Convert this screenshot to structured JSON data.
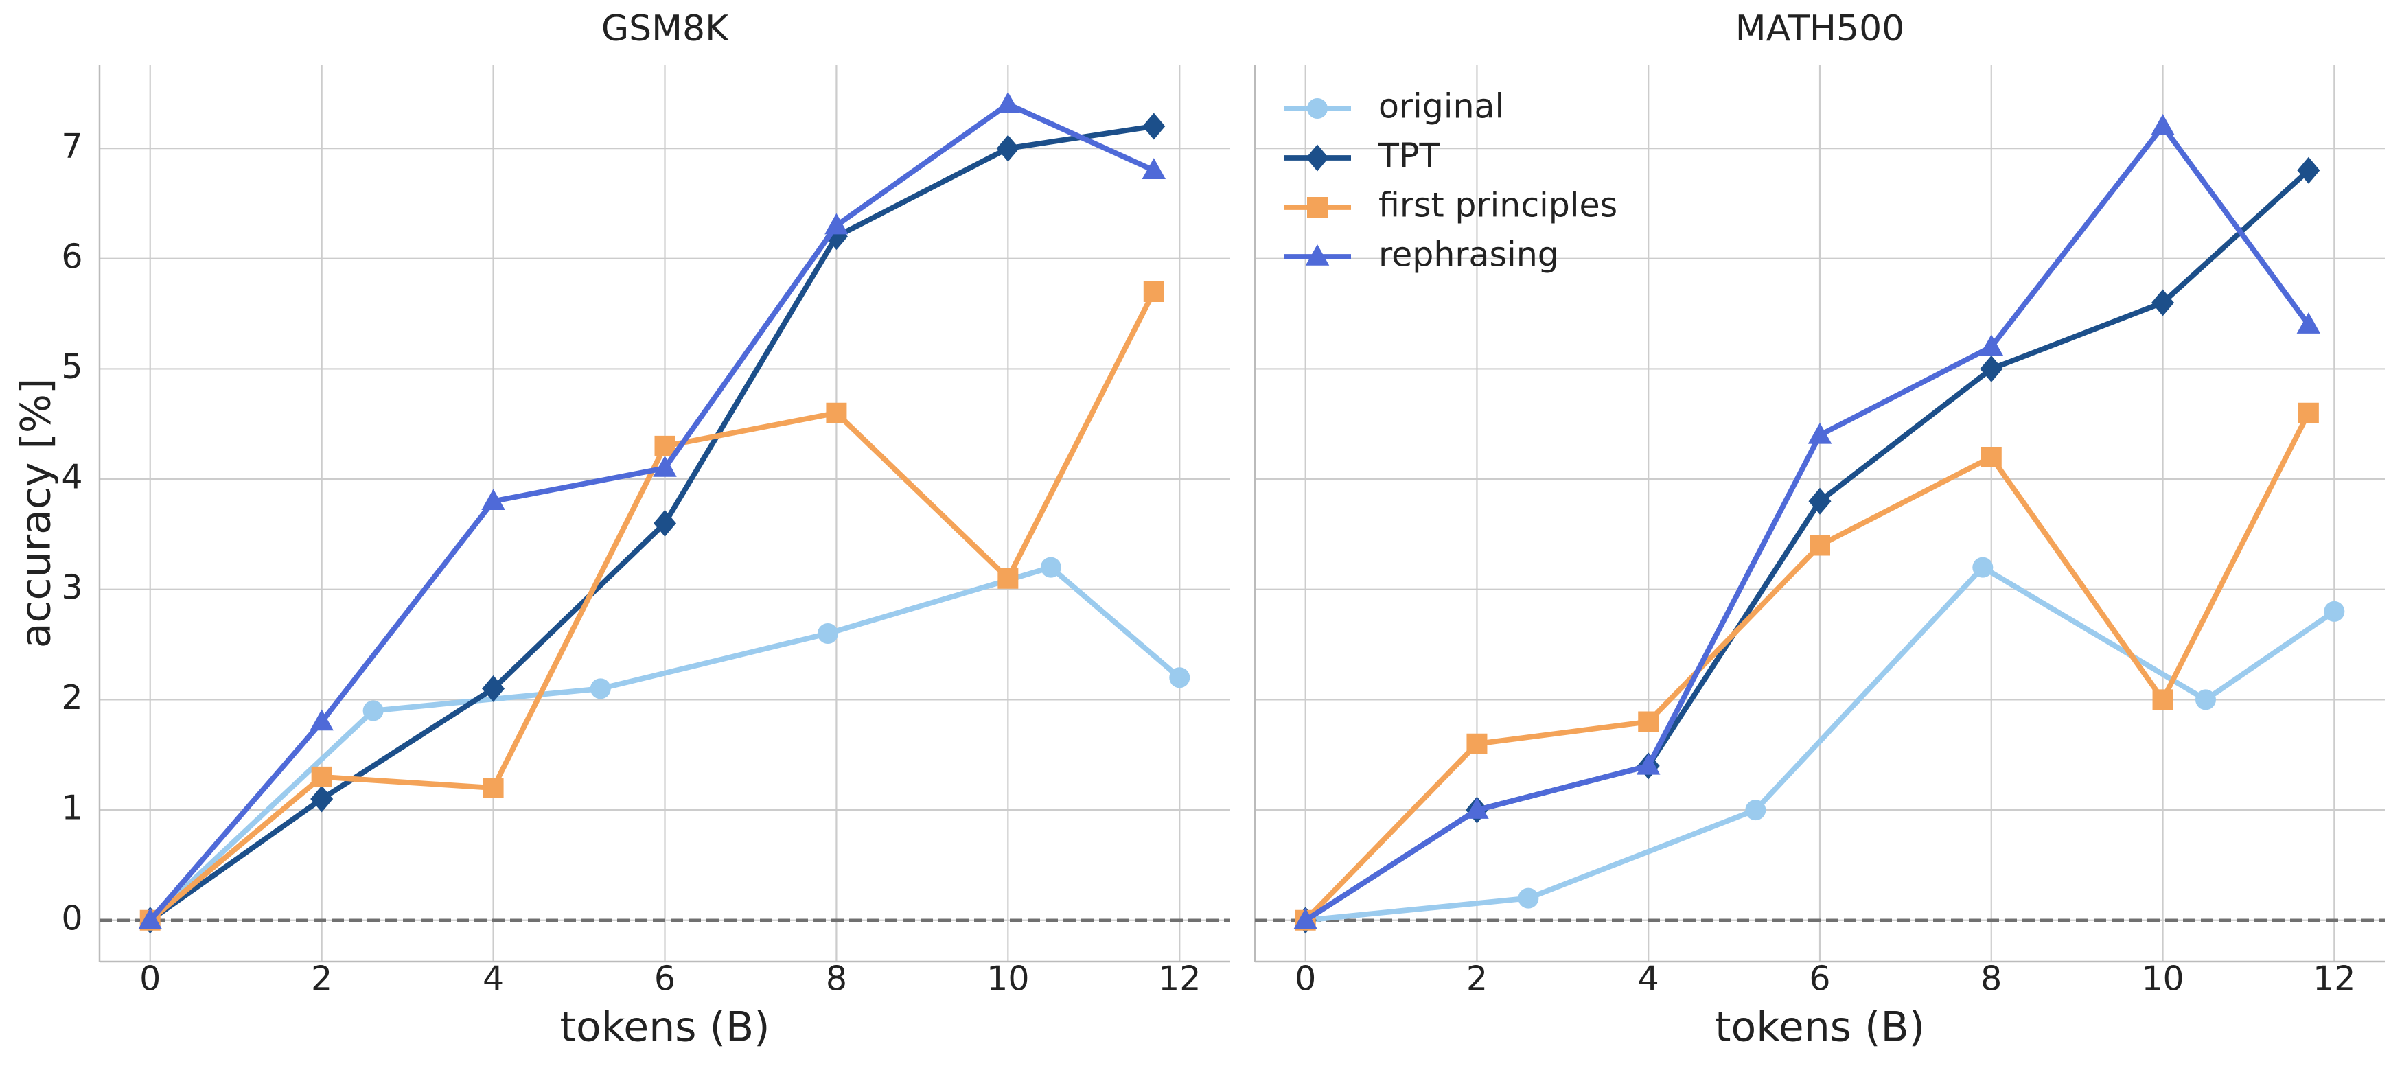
{
  "chart_data": [
    {
      "type": "line",
      "title": "GSM8K",
      "xlabel": "tokens (B)",
      "ylabel": "accuracy [%]",
      "xlim": [
        -0.59,
        12.59
      ],
      "xticks": [
        0,
        2,
        4,
        6,
        8,
        10,
        12
      ],
      "ylim": [
        -0.375,
        7.76
      ],
      "yticks": [
        0,
        1,
        2,
        3,
        4,
        5,
        6,
        7
      ],
      "grid": true,
      "hline": 0,
      "series": [
        {
          "name": "original",
          "color": "#9bcbee",
          "marker": "circle",
          "x": [
            0,
            2.6,
            5.25,
            7.9,
            10.5,
            12.0
          ],
          "values": [
            0,
            1.9,
            2.1,
            2.6,
            3.2,
            2.2
          ]
        },
        {
          "name": "TPT",
          "color": "#1c4f8a",
          "marker": "diamond",
          "x": [
            0,
            2,
            4,
            6,
            8,
            10,
            11.7
          ],
          "values": [
            0,
            1.1,
            2.1,
            3.6,
            6.2,
            7.0,
            7.2
          ]
        },
        {
          "name": "first principles",
          "color": "#f4a358",
          "marker": "square",
          "x": [
            0,
            2,
            4,
            6,
            8,
            10,
            11.7
          ],
          "values": [
            0,
            1.3,
            1.2,
            4.3,
            4.6,
            3.1,
            5.7
          ]
        },
        {
          "name": "rephrasing",
          "color": "#4f6ad8",
          "marker": "triangle",
          "x": [
            0,
            2,
            4,
            6,
            8,
            10,
            11.7
          ],
          "values": [
            0,
            1.8,
            3.8,
            4.1,
            6.3,
            7.4,
            6.8
          ]
        }
      ]
    },
    {
      "type": "line",
      "title": "MATH500",
      "xlabel": "tokens (B)",
      "legend": "upper left",
      "xlim": [
        -0.59,
        12.59
      ],
      "xticks": [
        0,
        2,
        4,
        6,
        8,
        10,
        12
      ],
      "ylim": [
        -0.375,
        7.76
      ],
      "yticks": [
        0,
        1,
        2,
        3,
        4,
        5,
        6,
        7
      ],
      "grid": true,
      "hline": 0,
      "series": [
        {
          "name": "original",
          "color": "#9bcbee",
          "marker": "circle",
          "x": [
            0,
            2.6,
            5.25,
            7.9,
            10.5,
            12.0
          ],
          "values": [
            0,
            0.2,
            1.0,
            3.2,
            2.0,
            2.8
          ]
        },
        {
          "name": "TPT",
          "color": "#1c4f8a",
          "marker": "diamond",
          "x": [
            0,
            2,
            4,
            6,
            8,
            10,
            11.7
          ],
          "values": [
            0,
            1.0,
            1.4,
            3.8,
            5.0,
            5.6,
            6.8
          ]
        },
        {
          "name": "first principles",
          "color": "#f4a358",
          "marker": "square",
          "x": [
            0,
            2,
            4,
            6,
            8,
            10,
            11.7
          ],
          "values": [
            0,
            1.6,
            1.8,
            3.4,
            4.2,
            2.0,
            4.6
          ]
        },
        {
          "name": "rephrasing",
          "color": "#4f6ad8",
          "marker": "triangle",
          "x": [
            0,
            2,
            4,
            6,
            8,
            10,
            11.7
          ],
          "values": [
            0,
            1.0,
            1.4,
            4.4,
            5.2,
            7.2,
            5.4
          ]
        }
      ]
    }
  ]
}
